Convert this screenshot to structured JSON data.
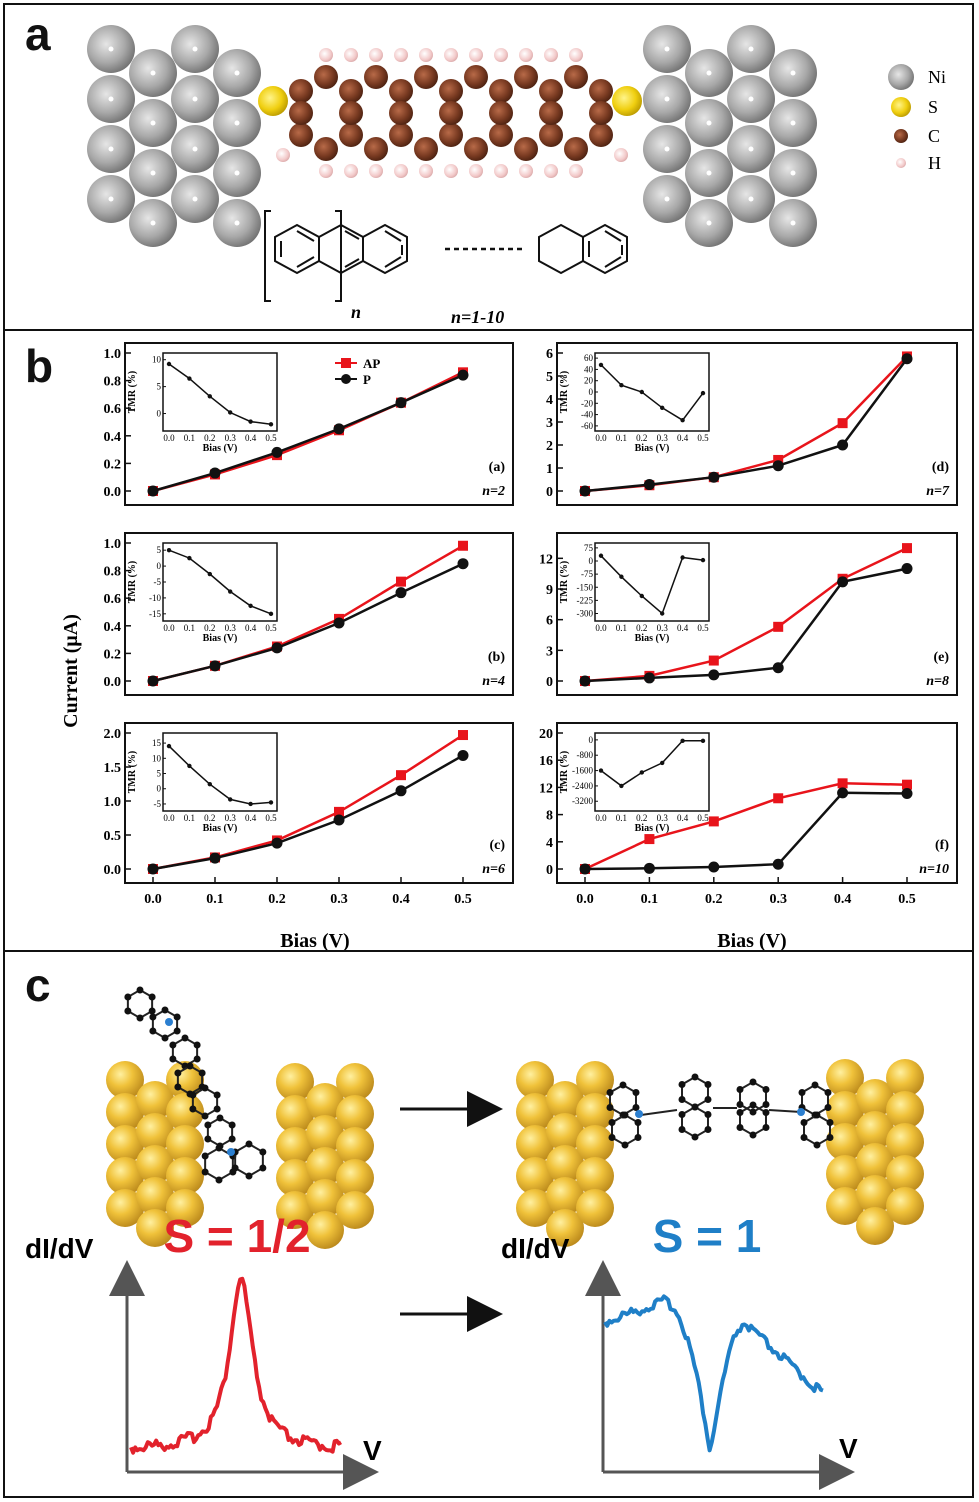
{
  "panels": {
    "a": {
      "letter": "a"
    },
    "b": {
      "letter": "b"
    },
    "c": {
      "letter": "c"
    }
  },
  "panel_a": {
    "legend": [
      {
        "label": "Ni",
        "color": "#a9a9a9"
      },
      {
        "label": "S",
        "color": "#f2d31a"
      },
      {
        "label": "C",
        "color": "#7a3b22"
      },
      {
        "label": "H",
        "color": "#f2c9c9"
      }
    ],
    "repeat_label": "n",
    "range_label": "n=1-10"
  },
  "panel_b": {
    "ylabel": "Current (μA)",
    "xlabel_left": "Bias (V)",
    "xlabel_right": "Bias (V)",
    "legend": {
      "ap": "AP",
      "p": "P"
    },
    "colors": {
      "ap": "#e8141b",
      "p": "#111111"
    },
    "inset_xlabel": "Bias (V)",
    "inset_ylabel": "TMR (%)"
  },
  "panel_c": {
    "spin_left": "S = 1/2",
    "spin_right": "S = 1",
    "ylabel": "dI/dV",
    "xlabel": "V",
    "colors": {
      "left": "#e2222c",
      "right": "#1f7fc7"
    }
  },
  "chart_data": [
    {
      "type": "line",
      "tag": "(a)",
      "n_label": "n=2",
      "x": [
        0.0,
        0.1,
        0.2,
        0.3,
        0.4,
        0.5
      ],
      "series": [
        {
          "name": "AP",
          "values": [
            0.0,
            0.12,
            0.26,
            0.44,
            0.64,
            0.86
          ]
        },
        {
          "name": "P",
          "values": [
            0.0,
            0.13,
            0.28,
            0.45,
            0.64,
            0.84
          ]
        }
      ],
      "ylim": [
        0,
        1.0
      ],
      "yticks": [
        "0.0",
        "0.2",
        "0.4",
        "0.6",
        "0.8",
        "1.0"
      ],
      "xticks": [
        "0.0",
        "0.1",
        "0.2",
        "0.3",
        "0.4",
        "0.5"
      ],
      "inset": {
        "x": [
          0.0,
          0.1,
          0.2,
          0.3,
          0.4,
          0.5
        ],
        "values": [
          9.2,
          6.5,
          3.2,
          0.2,
          -1.5,
          -2.0
        ],
        "ylim": [
          -2.5,
          10.5
        ],
        "yticks": [
          "10",
          "5",
          "0"
        ],
        "ytick_values": [
          10,
          5,
          0
        ],
        "xticks": [
          "0.0",
          "0.1",
          "0.2",
          "0.3",
          "0.4",
          "0.5"
        ]
      }
    },
    {
      "type": "line",
      "tag": "(b)",
      "n_label": "n=4",
      "x": [
        0.0,
        0.1,
        0.2,
        0.3,
        0.4,
        0.5
      ],
      "series": [
        {
          "name": "AP",
          "values": [
            0.0,
            0.11,
            0.25,
            0.45,
            0.72,
            0.98
          ]
        },
        {
          "name": "P",
          "values": [
            0.0,
            0.11,
            0.24,
            0.42,
            0.64,
            0.85
          ]
        }
      ],
      "ylim": [
        0,
        1.0
      ],
      "yticks": [
        "0.0",
        "0.2",
        "0.4",
        "0.6",
        "0.8",
        "1.0"
      ],
      "xticks": [
        "0.0",
        "0.1",
        "0.2",
        "0.3",
        "0.4",
        "0.5"
      ],
      "inset": {
        "x": [
          0.0,
          0.1,
          0.2,
          0.3,
          0.4,
          0.5
        ],
        "values": [
          5.0,
          2.5,
          -2.5,
          -8.0,
          -12.5,
          -15.0
        ],
        "ylim": [
          -16,
          6
        ],
        "yticks": [
          "5",
          "0",
          "-5",
          "-10",
          "-15"
        ],
        "ytick_values": [
          5,
          0,
          -5,
          -10,
          -15
        ],
        "xticks": [
          "0.0",
          "0.1",
          "0.2",
          "0.3",
          "0.4",
          "0.5"
        ]
      }
    },
    {
      "type": "line",
      "tag": "(c)",
      "n_label": "n=6",
      "x": [
        0.0,
        0.1,
        0.2,
        0.3,
        0.4,
        0.5
      ],
      "series": [
        {
          "name": "AP",
          "values": [
            0.0,
            0.17,
            0.42,
            0.84,
            1.38,
            1.97
          ]
        },
        {
          "name": "P",
          "values": [
            0.0,
            0.16,
            0.38,
            0.72,
            1.15,
            1.67
          ]
        }
      ],
      "ylim": [
        0,
        2.0
      ],
      "yticks": [
        "0.0",
        "0.5",
        "1.0",
        "1.5",
        "2.0"
      ],
      "xticks": [
        "0.0",
        "0.1",
        "0.2",
        "0.3",
        "0.4",
        "0.5"
      ],
      "inset": {
        "x": [
          0.0,
          0.1,
          0.2,
          0.3,
          0.4,
          0.5
        ],
        "values": [
          14.0,
          7.5,
          1.5,
          -3.5,
          -5.0,
          -4.5
        ],
        "ylim": [
          -6,
          17
        ],
        "yticks": [
          "15",
          "10",
          "5",
          "0",
          "-5"
        ],
        "ytick_values": [
          15,
          10,
          5,
          0,
          -5
        ],
        "xticks": [
          "0.0",
          "0.1",
          "0.2",
          "0.3",
          "0.4",
          "0.5"
        ]
      }
    },
    {
      "type": "line",
      "tag": "(d)",
      "n_label": "n=7",
      "x": [
        0.0,
        0.1,
        0.2,
        0.3,
        0.4,
        0.5
      ],
      "series": [
        {
          "name": "AP",
          "values": [
            0.0,
            0.25,
            0.6,
            1.35,
            2.95,
            5.85
          ]
        },
        {
          "name": "P",
          "values": [
            0.0,
            0.28,
            0.6,
            1.1,
            2.0,
            5.75
          ]
        }
      ],
      "ylim": [
        0,
        6
      ],
      "yticks": [
        "0",
        "1",
        "2",
        "3",
        "4",
        "5",
        "6"
      ],
      "xticks": [
        "0.0",
        "0.1",
        "0.2",
        "0.3",
        "0.4",
        "0.5"
      ],
      "inset": {
        "x": [
          0.0,
          0.1,
          0.2,
          0.3,
          0.4,
          0.5
        ],
        "values": [
          48,
          12,
          0,
          -28,
          -50,
          -2
        ],
        "ylim": [
          -62,
          62
        ],
        "yticks": [
          "60",
          "40",
          "20",
          "0",
          "-20",
          "-40",
          "-60"
        ],
        "ytick_values": [
          60,
          40,
          20,
          0,
          -20,
          -40,
          -60
        ],
        "xticks": [
          "0.0",
          "0.1",
          "0.2",
          "0.3",
          "0.4",
          "0.5"
        ]
      }
    },
    {
      "type": "line",
      "tag": "(e)",
      "n_label": "n=8",
      "x": [
        0.0,
        0.1,
        0.2,
        0.3,
        0.4,
        0.5
      ],
      "series": [
        {
          "name": "AP",
          "values": [
            0.0,
            0.5,
            2.0,
            5.3,
            10.0,
            13.0
          ]
        },
        {
          "name": "P",
          "values": [
            0.0,
            0.3,
            0.6,
            1.3,
            9.7,
            11.0
          ]
        }
      ],
      "ylim": [
        0,
        13.5
      ],
      "yticks": [
        "0",
        "3",
        "6",
        "9",
        "12"
      ],
      "xticks": [
        "0.0",
        "0.1",
        "0.2",
        "0.3",
        "0.4",
        "0.5"
      ],
      "inset": {
        "x": [
          0.0,
          0.1,
          0.2,
          0.3,
          0.4,
          0.5
        ],
        "values": [
          30,
          -90,
          -200,
          -300,
          20,
          5
        ],
        "ylim": [
          -320,
          80
        ],
        "yticks": [
          "75",
          "0",
          "-75",
          "-150",
          "-225",
          "-300"
        ],
        "ytick_values": [
          75,
          0,
          -75,
          -150,
          -225,
          -300
        ],
        "xticks": [
          "0.0",
          "0.1",
          "0.2",
          "0.3",
          "0.4",
          "0.5"
        ]
      }
    },
    {
      "type": "line",
      "tag": "(f)",
      "n_label": "n=10",
      "x": [
        0.0,
        0.1,
        0.2,
        0.3,
        0.4,
        0.5
      ],
      "series": [
        {
          "name": "AP",
          "values": [
            0.0,
            4.4,
            7.0,
            10.4,
            12.6,
            12.4
          ]
        },
        {
          "name": "P",
          "values": [
            0.0,
            0.1,
            0.3,
            0.7,
            11.2,
            11.1
          ]
        }
      ],
      "ylim": [
        0,
        20
      ],
      "yticks": [
        "0",
        "4",
        "8",
        "12",
        "16",
        "20"
      ],
      "xticks": [
        "0.0",
        "0.1",
        "0.2",
        "0.3",
        "0.4",
        "0.5"
      ],
      "inset": {
        "x": [
          0.0,
          0.1,
          0.2,
          0.3,
          0.4,
          0.5
        ],
        "values": [
          -1600,
          -2400,
          -1700,
          -1200,
          -50,
          -50
        ],
        "ylim": [
          -3500,
          150
        ],
        "yticks": [
          "0",
          "-800",
          "-1600",
          "-2400",
          "-3200"
        ],
        "ytick_values": [
          0,
          -800,
          -1600,
          -2400,
          -3200
        ],
        "xticks": [
          "0.0",
          "0.1",
          "0.2",
          "0.3",
          "0.4",
          "0.5"
        ]
      }
    }
  ]
}
